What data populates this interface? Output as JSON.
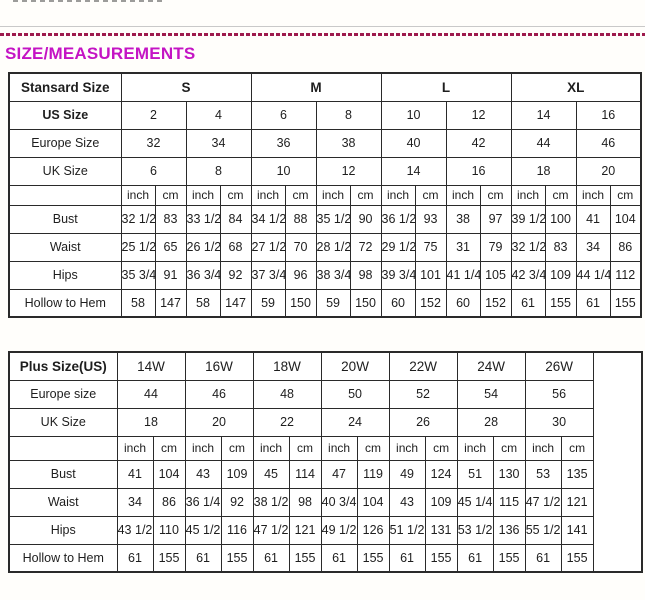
{
  "header": {
    "title": "SIZE/MEASUREMENTS"
  },
  "colors": {
    "heading": "#c414c4",
    "dashed_rule": "#9d1a4d",
    "gray_rule": "#c9c9c9",
    "text": "#1e1e1e",
    "table_border": "#2a2a2a",
    "page_bg": "#fffefb"
  },
  "standard_table": {
    "rows": [
      {
        "name": "size-group-row",
        "cells": [
          {
            "t": "Stansard Size",
            "b": 1,
            "n": "standard-size-label"
          },
          {
            "t": "S",
            "b": 1,
            "cs": 4,
            "n": "size-group-s"
          },
          {
            "t": "M",
            "b": 1,
            "cs": 4,
            "n": "size-group-m"
          },
          {
            "t": "L",
            "b": 1,
            "cs": 4,
            "n": "size-group-l"
          },
          {
            "t": "XL",
            "b": 1,
            "cs": 4,
            "n": "size-group-xl"
          }
        ]
      },
      {
        "name": "us-size-row",
        "cells": [
          {
            "t": "US Size",
            "b": 1,
            "n": "row-label"
          },
          {
            "t": "2",
            "cs": 2
          },
          {
            "t": "4",
            "cs": 2
          },
          {
            "t": "6",
            "cs": 2
          },
          {
            "t": "8",
            "cs": 2
          },
          {
            "t": "10",
            "cs": 2
          },
          {
            "t": "12",
            "cs": 2
          },
          {
            "t": "14",
            "cs": 2
          },
          {
            "t": "16",
            "cs": 2
          }
        ]
      },
      {
        "name": "europe-size-row",
        "cells": [
          {
            "t": "Europe Size",
            "n": "row-label"
          },
          {
            "t": "32",
            "cs": 2
          },
          {
            "t": "34",
            "cs": 2
          },
          {
            "t": "36",
            "cs": 2
          },
          {
            "t": "38",
            "cs": 2
          },
          {
            "t": "40",
            "cs": 2
          },
          {
            "t": "42",
            "cs": 2
          },
          {
            "t": "44",
            "cs": 2
          },
          {
            "t": "46",
            "cs": 2
          }
        ]
      },
      {
        "name": "uk-size-row",
        "cells": [
          {
            "t": "UK Size",
            "n": "row-label"
          },
          {
            "t": "6",
            "cs": 2
          },
          {
            "t": "8",
            "cs": 2
          },
          {
            "t": "10",
            "cs": 2
          },
          {
            "t": "12",
            "cs": 2
          },
          {
            "t": "14",
            "cs": 2
          },
          {
            "t": "16",
            "cs": 2
          },
          {
            "t": "18",
            "cs": 2
          },
          {
            "t": "20",
            "cs": 2
          }
        ]
      },
      {
        "type": "units",
        "name": "units-row",
        "cells": [
          {
            "t": "",
            "n": "empty-cell"
          },
          {
            "t": "inch",
            "n": "unit-label"
          },
          {
            "t": "cm",
            "n": "unit-label"
          },
          {
            "t": "inch",
            "n": "unit-label"
          },
          {
            "t": "cm",
            "n": "unit-label"
          },
          {
            "t": "inch",
            "n": "unit-label"
          },
          {
            "t": "cm",
            "n": "unit-label"
          },
          {
            "t": "inch",
            "n": "unit-label"
          },
          {
            "t": "cm",
            "n": "unit-label"
          },
          {
            "t": "inch",
            "n": "unit-label"
          },
          {
            "t": "cm",
            "n": "unit-label"
          },
          {
            "t": "inch",
            "n": "unit-label"
          },
          {
            "t": "cm",
            "n": "unit-label"
          },
          {
            "t": "inch",
            "n": "unit-label"
          },
          {
            "t": "cm",
            "n": "unit-label"
          },
          {
            "t": "inch",
            "n": "unit-label"
          },
          {
            "t": "cm",
            "n": "unit-label"
          }
        ]
      },
      {
        "name": "bust-row",
        "cells": [
          {
            "t": "Bust",
            "n": "row-label"
          },
          {
            "t": "32 1/2"
          },
          {
            "t": "83"
          },
          {
            "t": "33 1/2"
          },
          {
            "t": "84"
          },
          {
            "t": "34 1/2"
          },
          {
            "t": "88"
          },
          {
            "t": "35 1/2"
          },
          {
            "t": "90"
          },
          {
            "t": "36 1/2"
          },
          {
            "t": "93"
          },
          {
            "t": "38"
          },
          {
            "t": "97"
          },
          {
            "t": "39 1/2"
          },
          {
            "t": "100"
          },
          {
            "t": "41"
          },
          {
            "t": "104"
          }
        ]
      },
      {
        "name": "waist-row",
        "cells": [
          {
            "t": "Waist",
            "n": "row-label"
          },
          {
            "t": "25 1/2"
          },
          {
            "t": "65"
          },
          {
            "t": "26 1/2"
          },
          {
            "t": "68"
          },
          {
            "t": "27 1/2"
          },
          {
            "t": "70"
          },
          {
            "t": "28 1/2"
          },
          {
            "t": "72"
          },
          {
            "t": "29 1/2"
          },
          {
            "t": "75"
          },
          {
            "t": "31"
          },
          {
            "t": "79"
          },
          {
            "t": "32 1/2"
          },
          {
            "t": "83"
          },
          {
            "t": "34"
          },
          {
            "t": "86"
          }
        ]
      },
      {
        "name": "hips-row",
        "cells": [
          {
            "t": "Hips",
            "n": "row-label"
          },
          {
            "t": "35 3/4"
          },
          {
            "t": "91"
          },
          {
            "t": "36 3/4"
          },
          {
            "t": "92"
          },
          {
            "t": "37 3/4"
          },
          {
            "t": "96"
          },
          {
            "t": "38 3/4"
          },
          {
            "t": "98"
          },
          {
            "t": "39 3/4"
          },
          {
            "t": "101"
          },
          {
            "t": "41 1/4"
          },
          {
            "t": "105"
          },
          {
            "t": "42 3/4"
          },
          {
            "t": "109"
          },
          {
            "t": "44 1/4"
          },
          {
            "t": "112"
          }
        ]
      },
      {
        "name": "hollow-to-hem-row",
        "cells": [
          {
            "t": "Hollow to Hem",
            "n": "row-label"
          },
          {
            "t": "58"
          },
          {
            "t": "147"
          },
          {
            "t": "58"
          },
          {
            "t": "147"
          },
          {
            "t": "59"
          },
          {
            "t": "150"
          },
          {
            "t": "59"
          },
          {
            "t": "150"
          },
          {
            "t": "60"
          },
          {
            "t": "152"
          },
          {
            "t": "60"
          },
          {
            "t": "152"
          },
          {
            "t": "61"
          },
          {
            "t": "155"
          },
          {
            "t": "61"
          },
          {
            "t": "155"
          }
        ]
      }
    ]
  },
  "plus_table": {
    "rows": [
      {
        "name": "plus-size-row",
        "cells": [
          {
            "t": "Plus Size(US)",
            "b": 1,
            "n": "plus-size-label"
          },
          {
            "t": "14W",
            "cs": 2,
            "n": "size-group-14w"
          },
          {
            "t": "16W",
            "cs": 2,
            "n": "size-group-16w"
          },
          {
            "t": "18W",
            "cs": 2,
            "n": "size-group-18w"
          },
          {
            "t": "20W",
            "cs": 2,
            "n": "size-group-20w"
          },
          {
            "t": "22W",
            "cs": 2,
            "n": "size-group-22w"
          },
          {
            "t": "24W",
            "cs": 2,
            "n": "size-group-24w"
          },
          {
            "t": "26W",
            "cs": 2,
            "n": "size-group-26w"
          },
          {
            "t": "",
            "rs": 8,
            "n": "empty-column"
          }
        ]
      },
      {
        "name": "europe-size-row",
        "cells": [
          {
            "t": "Europe size",
            "n": "row-label"
          },
          {
            "t": "44",
            "cs": 2
          },
          {
            "t": "46",
            "cs": 2
          },
          {
            "t": "48",
            "cs": 2
          },
          {
            "t": "50",
            "cs": 2
          },
          {
            "t": "52",
            "cs": 2
          },
          {
            "t": "54",
            "cs": 2
          },
          {
            "t": "56",
            "cs": 2
          }
        ]
      },
      {
        "name": "uk-size-row",
        "cells": [
          {
            "t": "UK Size",
            "n": "row-label"
          },
          {
            "t": "18",
            "cs": 2
          },
          {
            "t": "20",
            "cs": 2
          },
          {
            "t": "22",
            "cs": 2
          },
          {
            "t": "24",
            "cs": 2
          },
          {
            "t": "26",
            "cs": 2
          },
          {
            "t": "28",
            "cs": 2
          },
          {
            "t": "30",
            "cs": 2
          }
        ]
      },
      {
        "type": "units",
        "name": "units-row",
        "cells": [
          {
            "t": "",
            "n": "empty-cell"
          },
          {
            "t": "inch",
            "n": "unit-label"
          },
          {
            "t": "cm",
            "n": "unit-label"
          },
          {
            "t": "inch",
            "n": "unit-label"
          },
          {
            "t": "cm",
            "n": "unit-label"
          },
          {
            "t": "inch",
            "n": "unit-label"
          },
          {
            "t": "cm",
            "n": "unit-label"
          },
          {
            "t": "inch",
            "n": "unit-label"
          },
          {
            "t": "cm",
            "n": "unit-label"
          },
          {
            "t": "inch",
            "n": "unit-label"
          },
          {
            "t": "cm",
            "n": "unit-label"
          },
          {
            "t": "inch",
            "n": "unit-label"
          },
          {
            "t": "cm",
            "n": "unit-label"
          },
          {
            "t": "inch",
            "n": "unit-label"
          },
          {
            "t": "cm",
            "n": "unit-label"
          }
        ]
      },
      {
        "name": "bust-row",
        "cells": [
          {
            "t": "Bust",
            "n": "row-label"
          },
          {
            "t": "41"
          },
          {
            "t": "104"
          },
          {
            "t": "43"
          },
          {
            "t": "109"
          },
          {
            "t": "45"
          },
          {
            "t": "114"
          },
          {
            "t": "47"
          },
          {
            "t": "119"
          },
          {
            "t": "49"
          },
          {
            "t": "124"
          },
          {
            "t": "51"
          },
          {
            "t": "130"
          },
          {
            "t": "53"
          },
          {
            "t": "135"
          }
        ]
      },
      {
        "name": "waist-row",
        "cells": [
          {
            "t": "Waist",
            "n": "row-label"
          },
          {
            "t": "34"
          },
          {
            "t": "86"
          },
          {
            "t": "36 1/4"
          },
          {
            "t": "92"
          },
          {
            "t": "38 1/2"
          },
          {
            "t": "98"
          },
          {
            "t": "40 3/4"
          },
          {
            "t": "104"
          },
          {
            "t": "43"
          },
          {
            "t": "109"
          },
          {
            "t": "45 1/4"
          },
          {
            "t": "115"
          },
          {
            "t": "47 1/2"
          },
          {
            "t": "121"
          }
        ]
      },
      {
        "name": "hips-row",
        "cells": [
          {
            "t": "Hips",
            "n": "row-label"
          },
          {
            "t": "43 1/2"
          },
          {
            "t": "110"
          },
          {
            "t": "45 1/2"
          },
          {
            "t": "116"
          },
          {
            "t": "47 1/2"
          },
          {
            "t": "121"
          },
          {
            "t": "49 1/2"
          },
          {
            "t": "126"
          },
          {
            "t": "51 1/2"
          },
          {
            "t": "131"
          },
          {
            "t": "53 1/2"
          },
          {
            "t": "136"
          },
          {
            "t": "55 1/2"
          },
          {
            "t": "141"
          }
        ]
      },
      {
        "name": "hollow-to-hem-row",
        "cells": [
          {
            "t": "Hollow to Hem",
            "n": "row-label"
          },
          {
            "t": "61"
          },
          {
            "t": "155"
          },
          {
            "t": "61"
          },
          {
            "t": "155"
          },
          {
            "t": "61"
          },
          {
            "t": "155"
          },
          {
            "t": "61"
          },
          {
            "t": "155"
          },
          {
            "t": "61"
          },
          {
            "t": "155"
          },
          {
            "t": "61"
          },
          {
            "t": "155"
          },
          {
            "t": "61"
          },
          {
            "t": "155"
          }
        ]
      }
    ]
  }
}
